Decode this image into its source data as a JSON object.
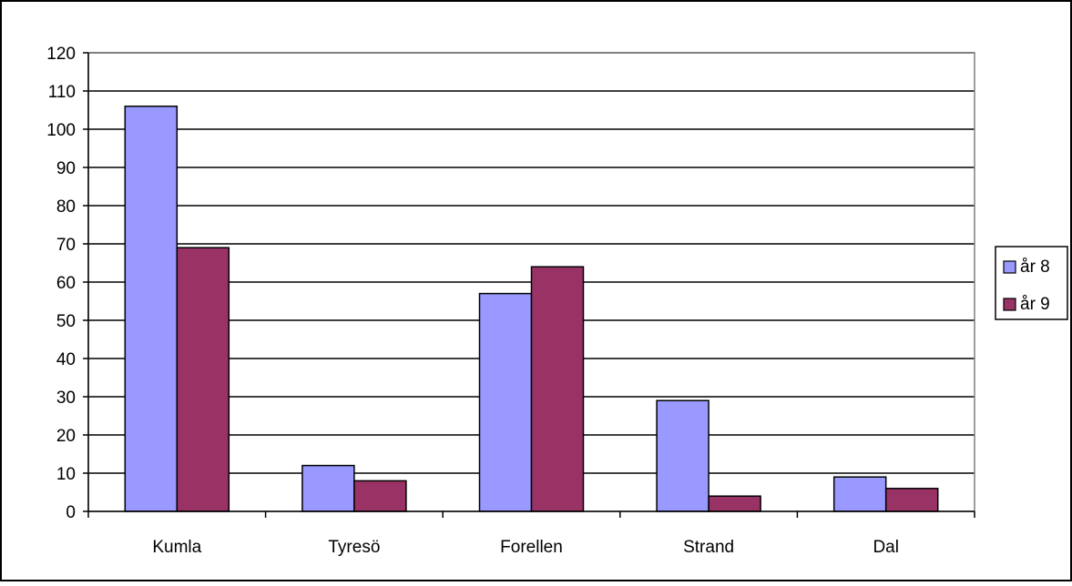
{
  "chart_data": {
    "type": "bar",
    "title": "",
    "xlabel": "",
    "ylabel": "",
    "categories": [
      "Kumla",
      "Tyresö",
      "Forellen",
      "Strand",
      "Dal"
    ],
    "series": [
      {
        "name": "år 8",
        "values": [
          106,
          12,
          57,
          29,
          9
        ],
        "color": "#9999ff"
      },
      {
        "name": "år 9",
        "values": [
          69,
          8,
          64,
          4,
          6
        ],
        "color": "#993366"
      }
    ],
    "ylim": [
      0,
      120
    ],
    "yticks": [
      "0",
      "10",
      "20",
      "30",
      "40",
      "50",
      "60",
      "70",
      "80",
      "90",
      "100",
      "110",
      "120"
    ],
    "grid": true,
    "legend_position": "right",
    "plot_background": "#ffffff",
    "border_color": "#000000"
  }
}
